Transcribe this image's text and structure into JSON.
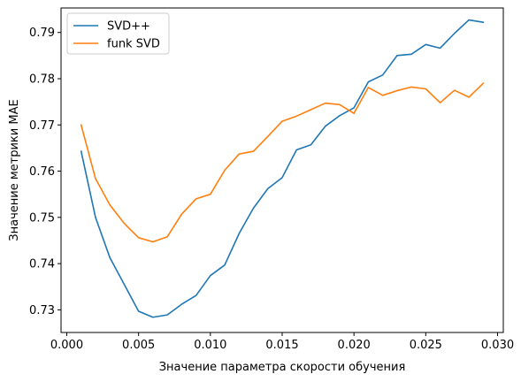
{
  "chart_data": {
    "type": "line",
    "title": "",
    "xlabel": "Значение параметра скорости обучения",
    "ylabel": "Значение метрики MAE",
    "xlim": [
      -0.0004,
      0.0304
    ],
    "ylim": [
      0.7251,
      0.7953
    ],
    "xticks": [
      "0.000",
      "0.005",
      "0.010",
      "0.015",
      "0.020",
      "0.025",
      "0.030"
    ],
    "xtick_values": [
      0.0,
      0.005,
      0.01,
      0.015,
      0.02,
      0.025,
      0.03
    ],
    "yticks": [
      "0.73",
      "0.74",
      "0.75",
      "0.76",
      "0.77",
      "0.78",
      "0.79"
    ],
    "ytick_values": [
      0.73,
      0.74,
      0.75,
      0.76,
      0.77,
      0.78,
      0.79
    ],
    "grid": false,
    "legend_position": "top-left",
    "x": [
      0.001,
      0.002,
      0.003,
      0.004,
      0.005,
      0.006,
      0.007,
      0.008,
      0.009,
      0.01,
      0.011,
      0.012,
      0.013,
      0.014,
      0.015,
      0.016,
      0.017,
      0.018,
      0.019,
      0.02,
      0.021,
      0.022,
      0.023,
      0.024,
      0.025,
      0.026,
      0.027,
      0.028,
      0.029
    ],
    "series": [
      {
        "name": "SVD++",
        "color": "#1f77b4",
        "values": [
          0.7643,
          0.75,
          0.7413,
          0.7355,
          0.7297,
          0.7284,
          0.7289,
          0.7312,
          0.7331,
          0.7374,
          0.7397,
          0.7465,
          0.752,
          0.7562,
          0.7586,
          0.7646,
          0.7657,
          0.7697,
          0.772,
          0.7737,
          0.7793,
          0.7808,
          0.785,
          0.7853,
          0.7874,
          0.7866,
          0.7898,
          0.7927,
          0.7922
        ]
      },
      {
        "name": "funk SVD",
        "color": "#ff7f0e",
        "values": [
          0.77,
          0.7584,
          0.7527,
          0.7487,
          0.7456,
          0.7447,
          0.7458,
          0.7507,
          0.754,
          0.755,
          0.7602,
          0.7637,
          0.7643,
          0.7675,
          0.7708,
          0.7719,
          0.7733,
          0.7747,
          0.7744,
          0.7725,
          0.7781,
          0.7764,
          0.7774,
          0.7782,
          0.7778,
          0.7748,
          0.7775,
          0.776,
          0.779
        ]
      }
    ]
  }
}
